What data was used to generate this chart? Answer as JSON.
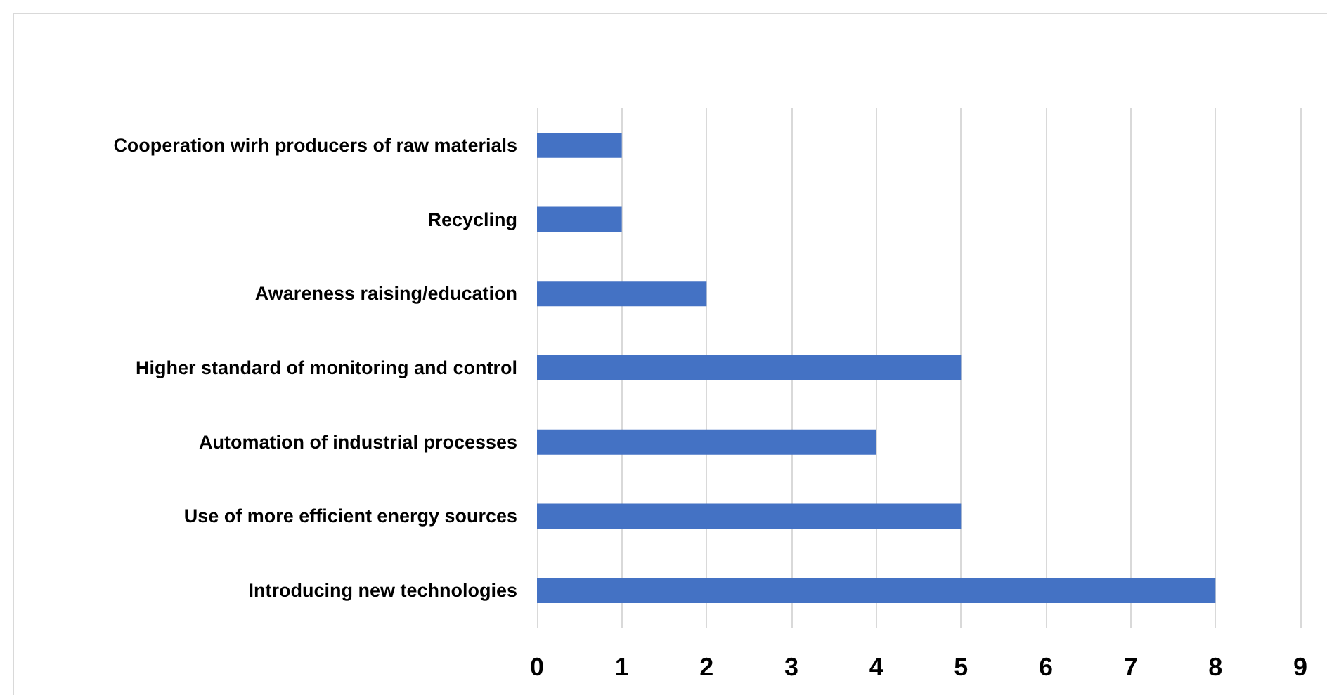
{
  "chart_data": {
    "type": "bar",
    "orientation": "horizontal",
    "categories": [
      "Cooperation wirh producers of raw materials",
      "Recycling",
      "Awareness raising/education",
      "Higher standard of monitoring and control",
      "Automation of industrial processes",
      "Use of more efficient energy sources",
      "Introducing new technologies"
    ],
    "values": [
      1,
      1,
      2,
      5,
      4,
      5,
      8
    ],
    "color": "#4472c4",
    "xlim": [
      0,
      9
    ],
    "xticks": [
      0,
      1,
      2,
      3,
      4,
      5,
      6,
      7,
      8,
      9
    ],
    "grid": "x"
  }
}
